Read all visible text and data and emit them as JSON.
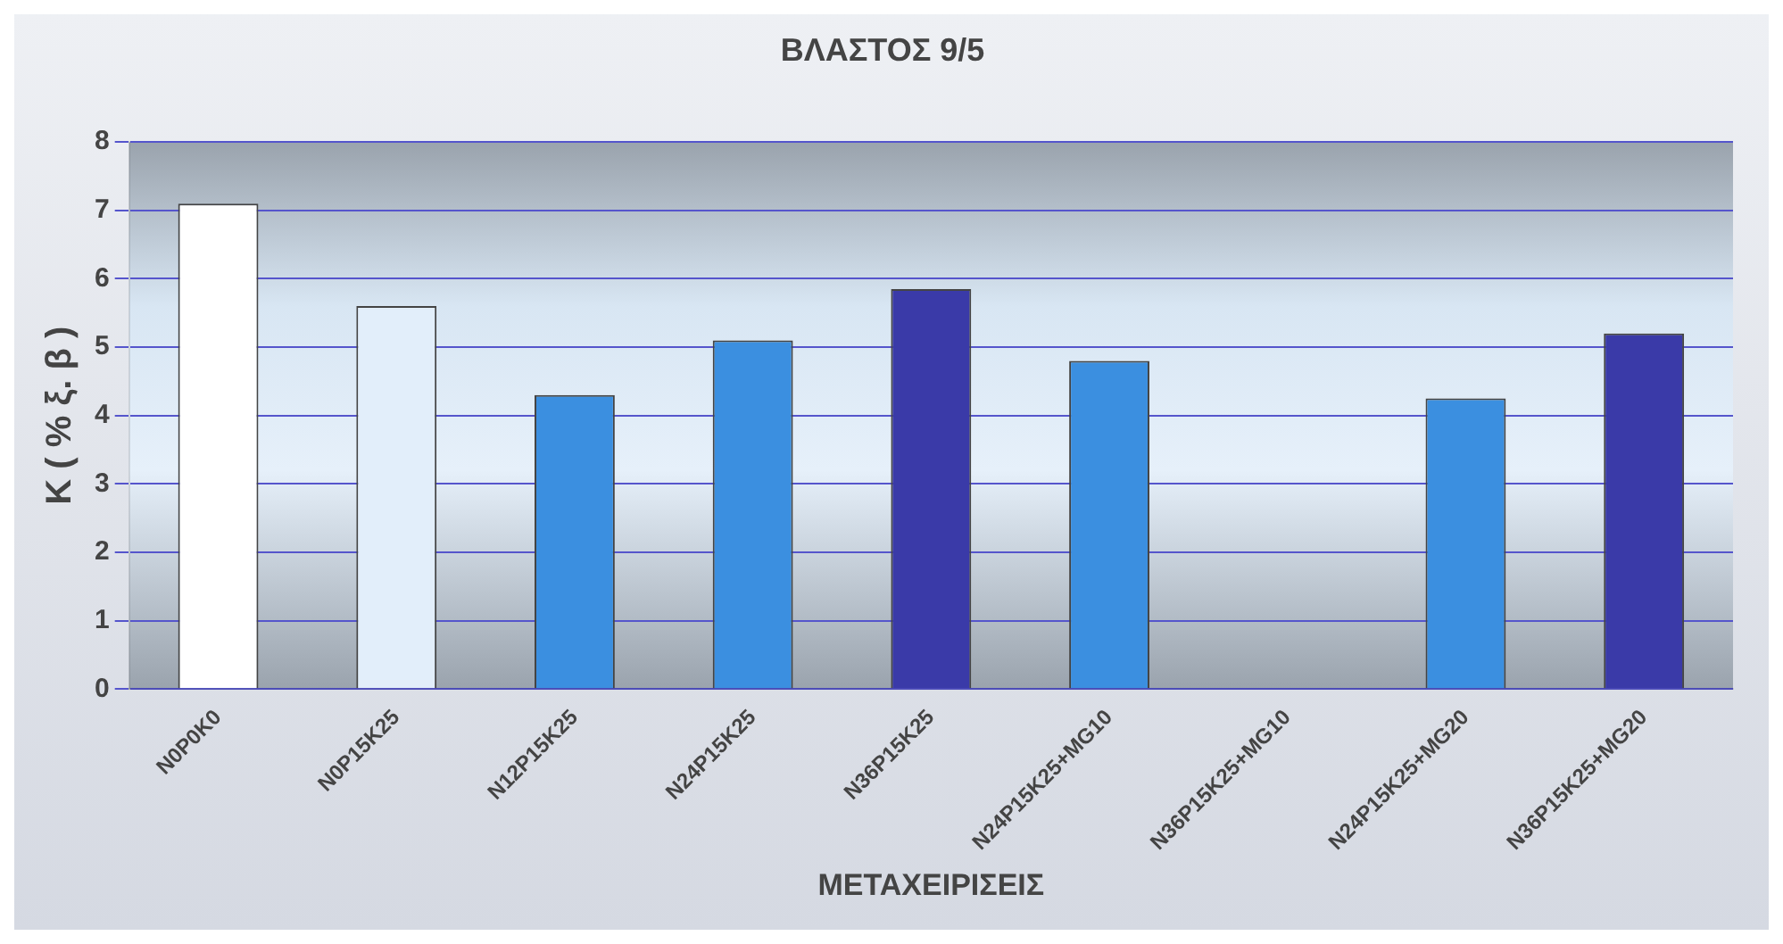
{
  "chart_data": {
    "type": "bar",
    "title": "ΒΛΑΣΤΟΣ 9/5",
    "xlabel": "ΜΕΤΑΧΕΙΡΙΣΕΙΣ",
    "ylabel": "K ( % ξ. β )",
    "categories": [
      "N0P0K0",
      "N0P15K25",
      "N12P15K25",
      "N24P15K25",
      "N36P15K25",
      "N24P15K25+MG10",
      "N36P15K25+MG10",
      "N24P15K25+MG20",
      "N36P15K25+MG20"
    ],
    "values": [
      7.1,
      5.6,
      4.3,
      5.1,
      5.85,
      4.8,
      null,
      4.25,
      5.2
    ],
    "colors": [
      "#ffffff",
      "#e2eefa",
      "#3b8fe0",
      "#3b8fe0",
      "#3a3aa8",
      "#3b8fe0",
      "#3b8fe0",
      "#3b8fe0",
      "#3a3aa8"
    ],
    "ylim": [
      0,
      8
    ],
    "yticks": [
      0,
      1,
      2,
      3,
      4,
      5,
      6,
      7,
      8
    ],
    "grid": "y",
    "legend": false
  }
}
